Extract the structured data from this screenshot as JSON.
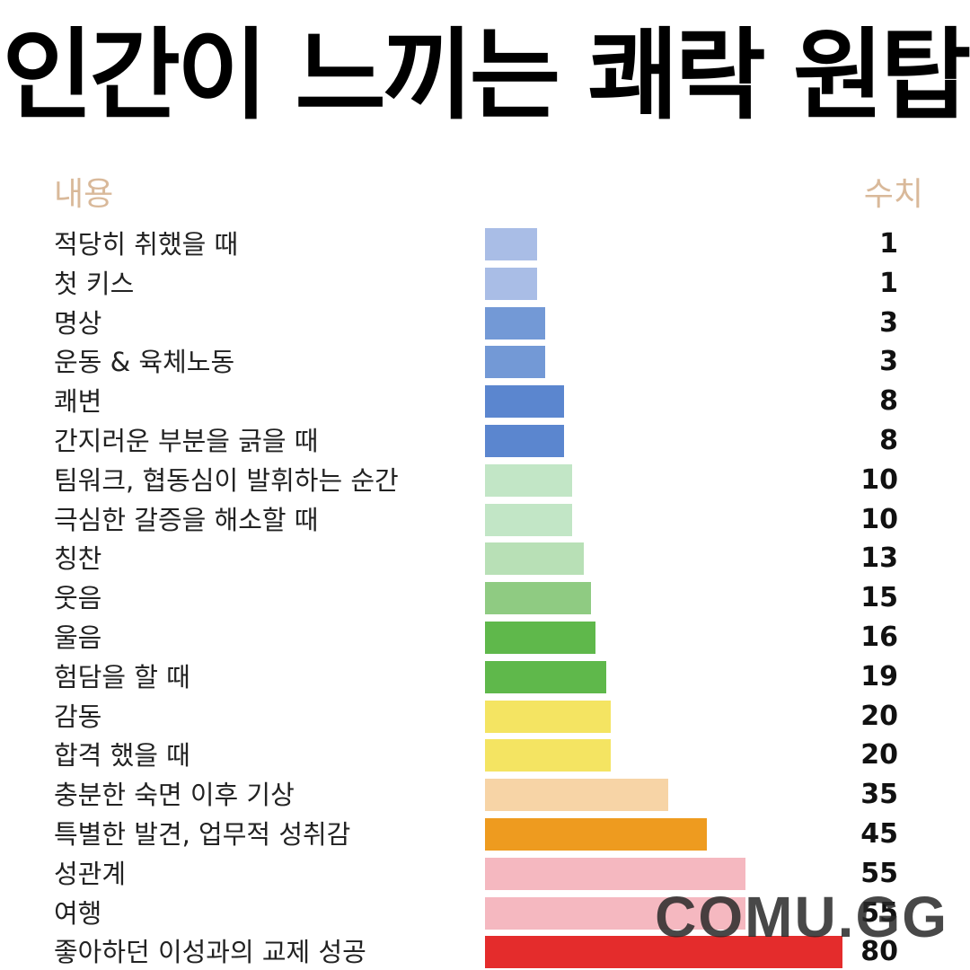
{
  "header": {
    "title": "인간이 느끼는 쾌락 원탑",
    "col_label": "내용",
    "col_value": "수치"
  },
  "watermark": "COMU.GG",
  "chart_data": {
    "type": "bar",
    "orientation": "horizontal",
    "categories": [
      "적당히 취했을 때",
      "첫 키스",
      "명상",
      "운동 & 육체노동",
      "쾌변",
      "간지러운 부분을 긁을 때",
      "팀워크, 협동심이 발휘하는 순간",
      "극심한 갈증을 해소할 때",
      "칭찬",
      "웃음",
      "울음",
      "험담을 할 때",
      "감동",
      "합격 했을 때",
      "충분한 숙면 이후 기상",
      "특별한 발견, 업무적 성취감",
      "성관계",
      "여행",
      "좋아하던 이성과의 교제 성공"
    ],
    "values": [
      1,
      1,
      3,
      3,
      8,
      8,
      10,
      10,
      13,
      15,
      16,
      19,
      20,
      20,
      35,
      45,
      55,
      55,
      80
    ],
    "colors": [
      "#a9bde6",
      "#a9bde6",
      "#7399d6",
      "#7399d6",
      "#5b86cf",
      "#5b86cf",
      "#c2e6c6",
      "#c2e6c6",
      "#b8e0b6",
      "#8fcb82",
      "#5fb84b",
      "#5fb84b",
      "#f4e462",
      "#f4e462",
      "#f7d4a6",
      "#ee9b1f",
      "#f5b8c0",
      "#f5b8c0",
      "#e42c2c"
    ],
    "xlim": [
      0,
      80
    ]
  }
}
